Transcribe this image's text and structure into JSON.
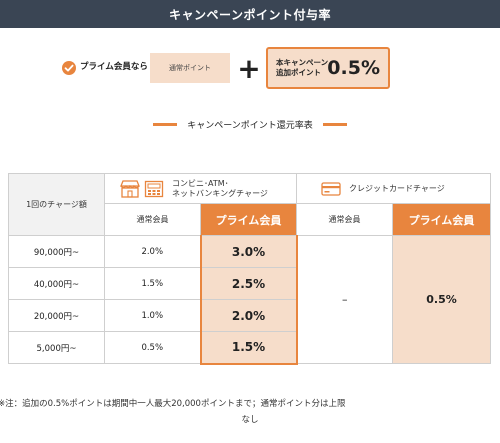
{
  "header": {
    "title": "キャンペーンポイント付与率"
  },
  "formula": {
    "member_condition": "プライム会員なら",
    "normal_points": "通常ポイント",
    "plus": "+",
    "campaign_label_line1": "本キャンペーン",
    "campaign_label_line2": "追加ポイント",
    "campaign_rate": "0.5%"
  },
  "table_section": {
    "subtitle": "キャンペーンポイント還元率表"
  },
  "table": {
    "amount_header": "1回のチャージ額",
    "group_convenience_line1": "コンビニ･ATM･",
    "group_convenience_line2": "ネットバンキングチャージ",
    "group_credit": "クレジットカードチャージ",
    "sub_normal": "通常会員",
    "sub_prime": "プライム会員",
    "rows": [
      {
        "amount": "90,000円~",
        "normal": "2.0%",
        "prime": "3.0%"
      },
      {
        "amount": "40,000円~",
        "normal": "1.5%",
        "prime": "2.5%"
      },
      {
        "amount": "20,000円~",
        "normal": "1.0%",
        "prime": "2.0%"
      },
      {
        "amount": "5,000円~",
        "normal": "0.5%",
        "prime": "1.5%"
      }
    ],
    "credit_normal": "–",
    "credit_prime": "0.5%"
  },
  "note": {
    "line1": "※注：追加の0.5%ポイントは期間中一人最大20,000ポイントまで；通常ポイント分は上限",
    "line2": "なし"
  },
  "colors": {
    "accent": "#e8853e",
    "accent_light": "#f6ddca",
    "header_bg": "#3a4554"
  },
  "icons": {
    "check": "check-circle-icon",
    "store": "store-icon",
    "atm": "atm-icon",
    "credit_card": "credit-card-icon"
  }
}
